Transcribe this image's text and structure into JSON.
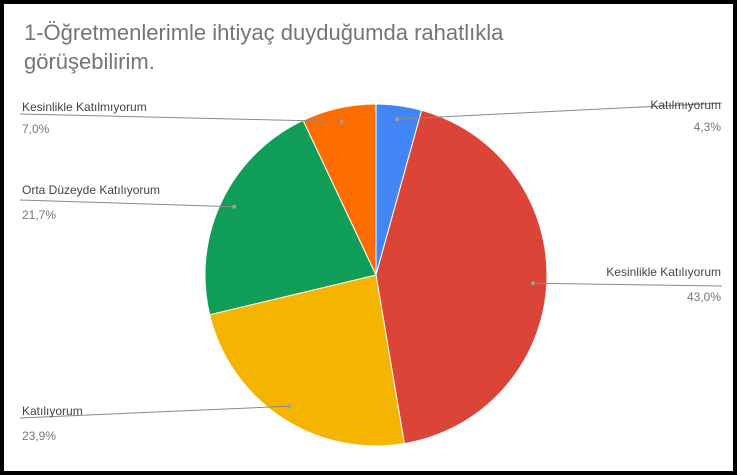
{
  "chart_data": {
    "type": "pie",
    "title": "1-Öğretmenlerimle ihtiyaç duyduğumda rahatlıkla görüşebilirim.",
    "slices": [
      {
        "label": "Katılmıyorum",
        "value": 4.3,
        "display": "4,3%",
        "color": "#4285F4"
      },
      {
        "label": "Kesinlikle Katılıyorum",
        "value": 43.0,
        "display": "43,0%",
        "color": "#DB4437"
      },
      {
        "label": "Katılıyorum",
        "value": 23.9,
        "display": "23,9%",
        "color": "#F4B400"
      },
      {
        "label": "Orta Düzeyde Katılıyorum",
        "value": 21.7,
        "display": "21,7%",
        "color": "#0F9D58"
      },
      {
        "label": "Kesinlikle Katılmıyorum",
        "value": 7.0,
        "display": "7,0%",
        "color": "#FF6D01"
      }
    ],
    "legend": "none"
  }
}
